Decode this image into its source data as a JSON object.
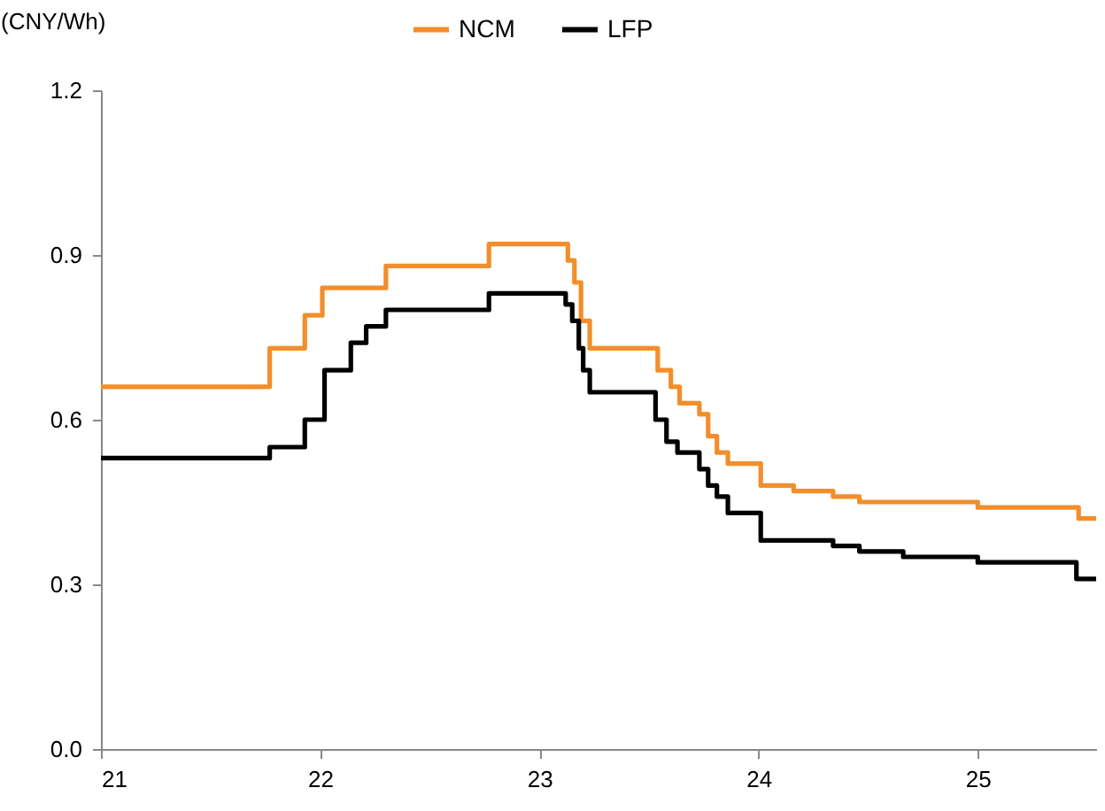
{
  "chart_data": {
    "type": "step",
    "ylabel": "(CNY/Wh)",
    "xlim": [
      21,
      25.54
    ],
    "xticks": [
      21,
      22,
      23,
      24,
      25
    ],
    "ylim": [
      0,
      1.2
    ],
    "yticks": [
      {
        "value": 0,
        "label": "0.0"
      },
      0.3,
      0.6,
      0.9,
      {
        "value": 1.2,
        "label": "1.2"
      }
    ],
    "legend": "top",
    "grid": false,
    "series": [
      {
        "name": "NCM",
        "color": "#f28e2b",
        "x": [
          21,
          21.77,
          21.93,
          22.01,
          22.3,
          22.77,
          23.13,
          23.16,
          23.19,
          23.23,
          23.54,
          23.6,
          23.64,
          23.73,
          23.77,
          23.81,
          23.86,
          24.01,
          24.16,
          24.34,
          24.46,
          25.0,
          25.46,
          25.54
        ],
        "values": [
          0.66,
          0.73,
          0.79,
          0.84,
          0.88,
          0.92,
          0.89,
          0.85,
          0.78,
          0.73,
          0.69,
          0.66,
          0.63,
          0.61,
          0.57,
          0.54,
          0.52,
          0.48,
          0.47,
          0.46,
          0.45,
          0.44,
          0.42,
          0.42
        ]
      },
      {
        "name": "LFP",
        "color": "#000000",
        "x": [
          21,
          21.77,
          21.93,
          22.02,
          22.14,
          22.21,
          22.3,
          22.77,
          23.12,
          23.15,
          23.18,
          23.2,
          23.23,
          23.53,
          23.58,
          23.63,
          23.73,
          23.77,
          23.81,
          23.86,
          24.01,
          24.34,
          24.46,
          24.66,
          25.0,
          25.45,
          25.54
        ],
        "values": [
          0.53,
          0.55,
          0.6,
          0.69,
          0.74,
          0.77,
          0.8,
          0.83,
          0.81,
          0.78,
          0.73,
          0.69,
          0.65,
          0.6,
          0.56,
          0.54,
          0.51,
          0.48,
          0.46,
          0.43,
          0.38,
          0.37,
          0.36,
          0.35,
          0.34,
          0.31,
          0.31
        ]
      }
    ]
  }
}
